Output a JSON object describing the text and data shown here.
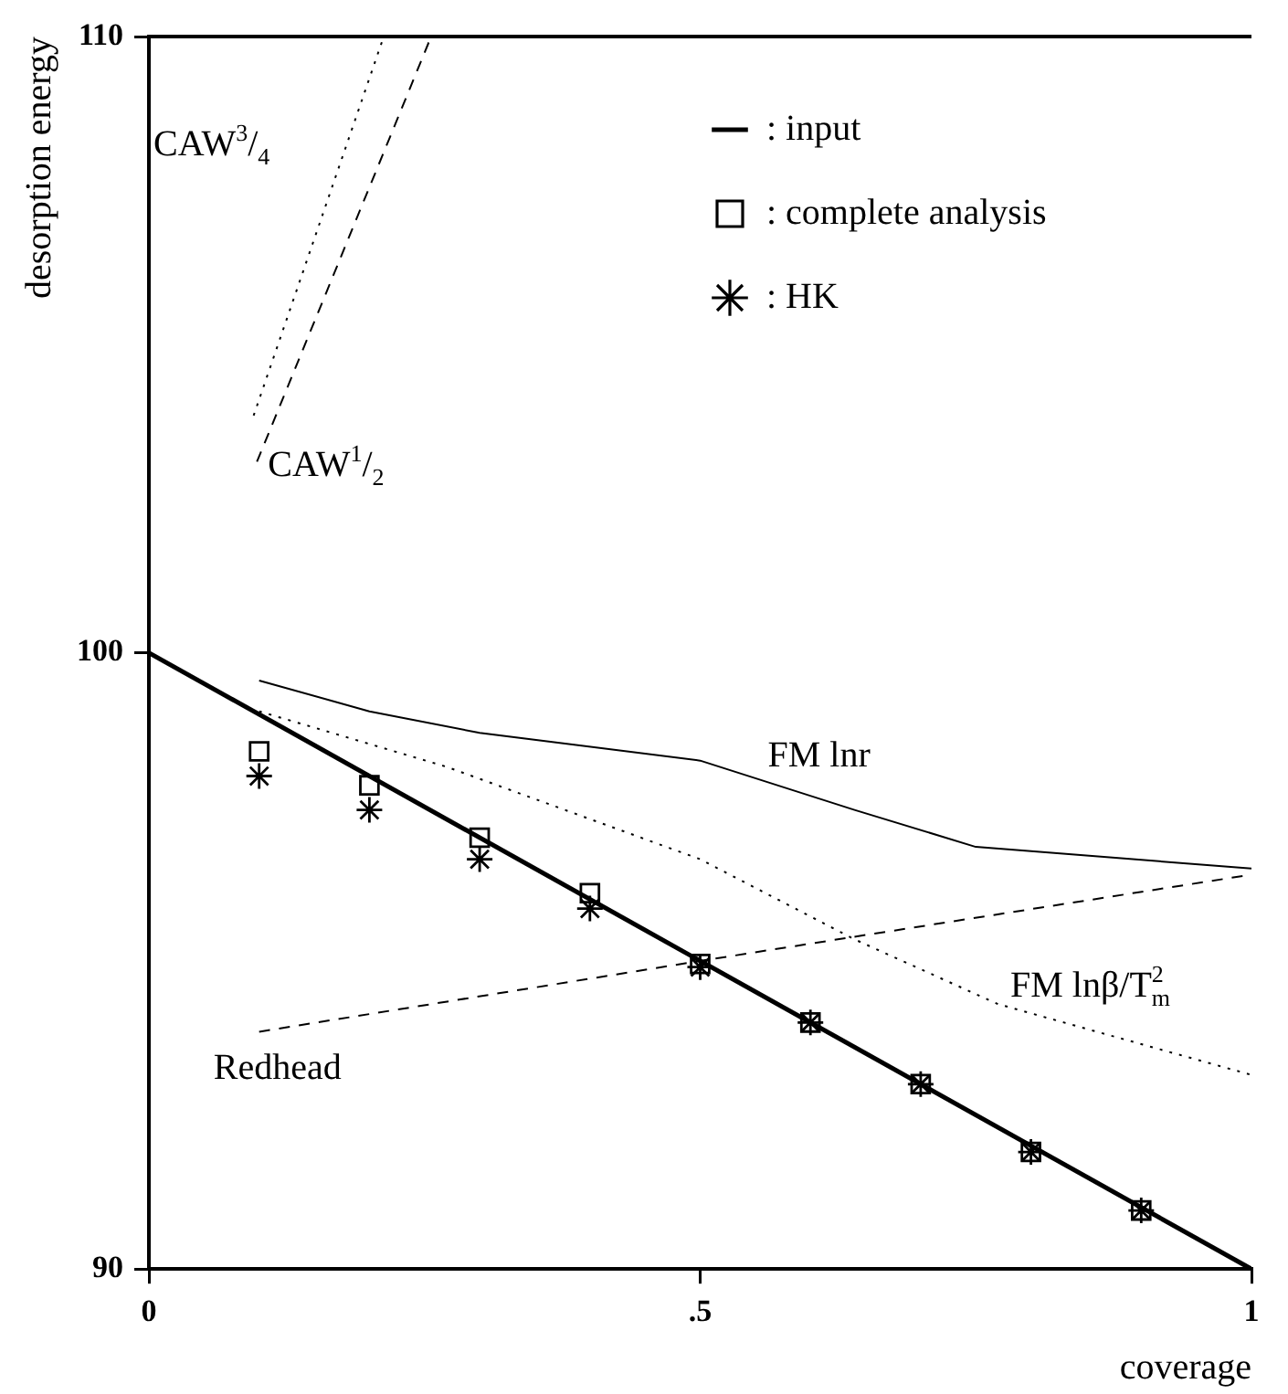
{
  "chart_data": {
    "type": "line",
    "xlabel": "coverage",
    "ylabel": "desorption energy",
    "xlim": [
      0,
      1
    ],
    "ylim": [
      90,
      110
    ],
    "xticks": [
      0,
      {
        "value": 0.5,
        "label": ".5"
      },
      1
    ],
    "yticks": [
      90,
      100,
      110
    ],
    "grid": false,
    "legend": "top right",
    "series": [
      {
        "name": ": input",
        "color": "#000000",
        "line_style": "solid",
        "marker": "none",
        "x": [
          0,
          1
        ],
        "values": [
          100,
          90
        ]
      },
      {
        "name": ": complete analysis",
        "type": "scatter",
        "color": "#000000",
        "marker": "square",
        "x": [
          0.1,
          0.2,
          0.3,
          0.4,
          0.5,
          0.6,
          0.7,
          0.8,
          0.9
        ],
        "values": [
          98.4,
          97.85,
          97.0,
          96.1,
          94.95,
          94.0,
          93.0,
          91.9,
          90.95
        ]
      },
      {
        "name": ": HK",
        "type": "scatter",
        "color": "#000000",
        "marker": "cross",
        "x": [
          0.1,
          0.2,
          0.3,
          0.4,
          0.5,
          0.6,
          0.7,
          0.8,
          0.9
        ],
        "values": [
          98.0,
          97.45,
          96.65,
          95.85,
          94.9,
          94.0,
          93.0,
          91.9,
          90.95
        ]
      },
      {
        "name": "FM lnr",
        "color": "#000000",
        "line_style": "solid",
        "marker": "none",
        "x": [
          0.1,
          0.2,
          0.3,
          0.5,
          0.64,
          0.75,
          1
        ],
        "values": [
          99.55,
          99.05,
          98.7,
          98.25,
          97.45,
          96.85,
          96.5
        ]
      },
      {
        "name": "FM lnβ/T$_{m}$$^{2}$",
        "color": "#000000",
        "line_style": "dotted",
        "marker": "none",
        "x": [
          0.1,
          0.27,
          0.5,
          0.64,
          0.77,
          0.9,
          1
        ],
        "values": [
          99.05,
          98.15,
          96.65,
          95.35,
          94.3,
          93.65,
          93.15
        ]
      },
      {
        "name": "Redhead",
        "color": "#000000",
        "line_style": "dashed",
        "marker": "none",
        "x": [
          0.1,
          0.5,
          1
        ],
        "values": [
          93.85,
          95.0,
          96.4
        ]
      },
      {
        "name": "CAW$^{3}$/$_{4}$",
        "color": "#000000",
        "line_style": "dotted",
        "marker": "none",
        "x": [
          0.095,
          0.213
        ],
        "values": [
          103.85,
          110
        ]
      },
      {
        "name": "CAW$^{1}$/$_{2}$",
        "color": "#000000",
        "line_style": "dashed",
        "marker": "none",
        "x": [
          0.098,
          0.256
        ],
        "values": [
          103.1,
          110
        ]
      }
    ]
  }
}
